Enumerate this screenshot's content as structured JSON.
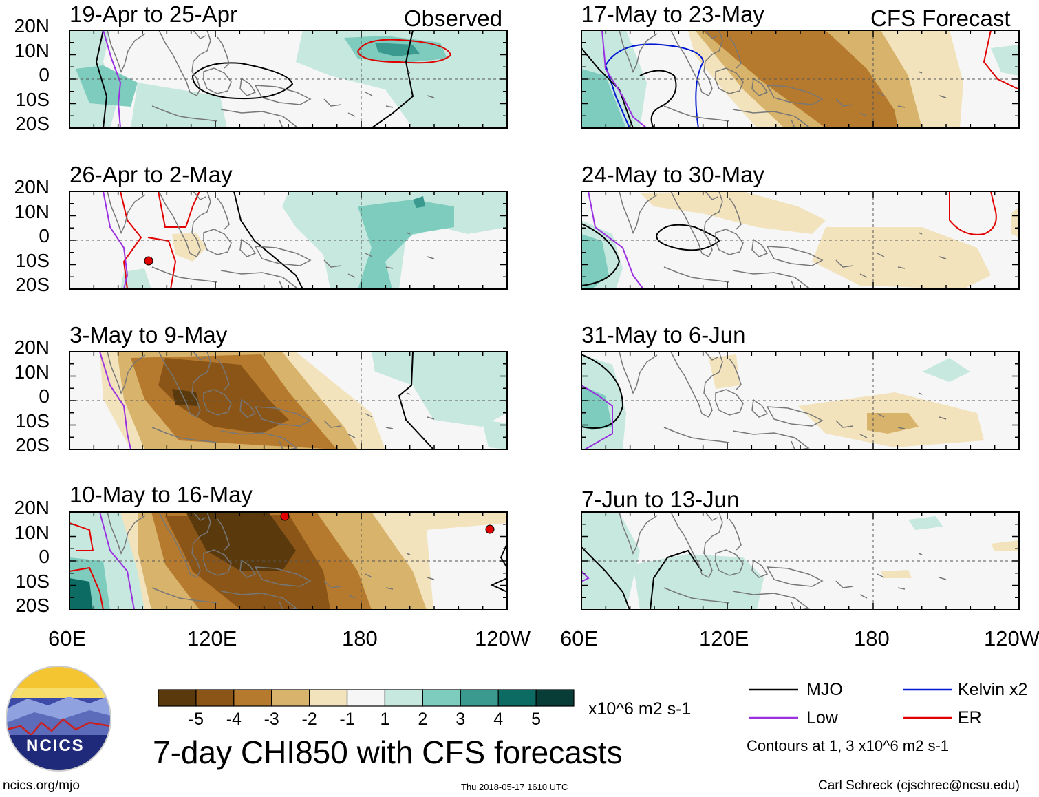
{
  "panels_left": [
    {
      "title": "19-Apr to 25-Apr",
      "corner_label": "Observed"
    },
    {
      "title": "26-Apr to 2-May",
      "corner_label": ""
    },
    {
      "title": "3-May to 9-May",
      "corner_label": ""
    },
    {
      "title": "10-May to 16-May",
      "corner_label": ""
    }
  ],
  "panels_right": [
    {
      "title": "17-May to 23-May",
      "corner_label": "CFS Forecast"
    },
    {
      "title": "24-May to 30-May",
      "corner_label": ""
    },
    {
      "title": "31-May to 6-Jun",
      "corner_label": ""
    },
    {
      "title": "7-Jun to 13-Jun",
      "corner_label": ""
    }
  ],
  "lat_labels": [
    "20N",
    "10N",
    "0",
    "10S",
    "20S"
  ],
  "lon_labels": [
    "60E",
    "120E",
    "180",
    "120W"
  ],
  "colorbar": {
    "ticks": [
      "-5",
      "-4",
      "-3",
      "-2",
      "-1",
      "1",
      "2",
      "3",
      "4",
      "5"
    ],
    "units": "x10^6 m2 s-1",
    "colors": [
      "#5a3a0c",
      "#8a5516",
      "#b67a2e",
      "#d8b36b",
      "#f2e3bd",
      "#f6f6f6",
      "#c6e8df",
      "#7dccbd",
      "#3a9a8f",
      "#0c6b62",
      "#073d36"
    ]
  },
  "title": "7-day CHI850 with CFS forecasts",
  "legend": {
    "mjo": "MJO",
    "low": "Low",
    "kelvin": "Kelvin x2",
    "er": "ER",
    "note": "Contours at 1, 3 x10^6 m2 s-1",
    "colors": {
      "mjo": "#000000",
      "low": "#9b30e0",
      "kelvin": "#0018d0",
      "er": "#e00000"
    }
  },
  "logo": {
    "text": "NCICS"
  },
  "footer": {
    "url": "ncics.org/mjo",
    "timestamp": "Thu 2018-05-17 1610 UTC",
    "credit": "Carl Schreck (cjschrec@ncsu.edu)"
  }
}
